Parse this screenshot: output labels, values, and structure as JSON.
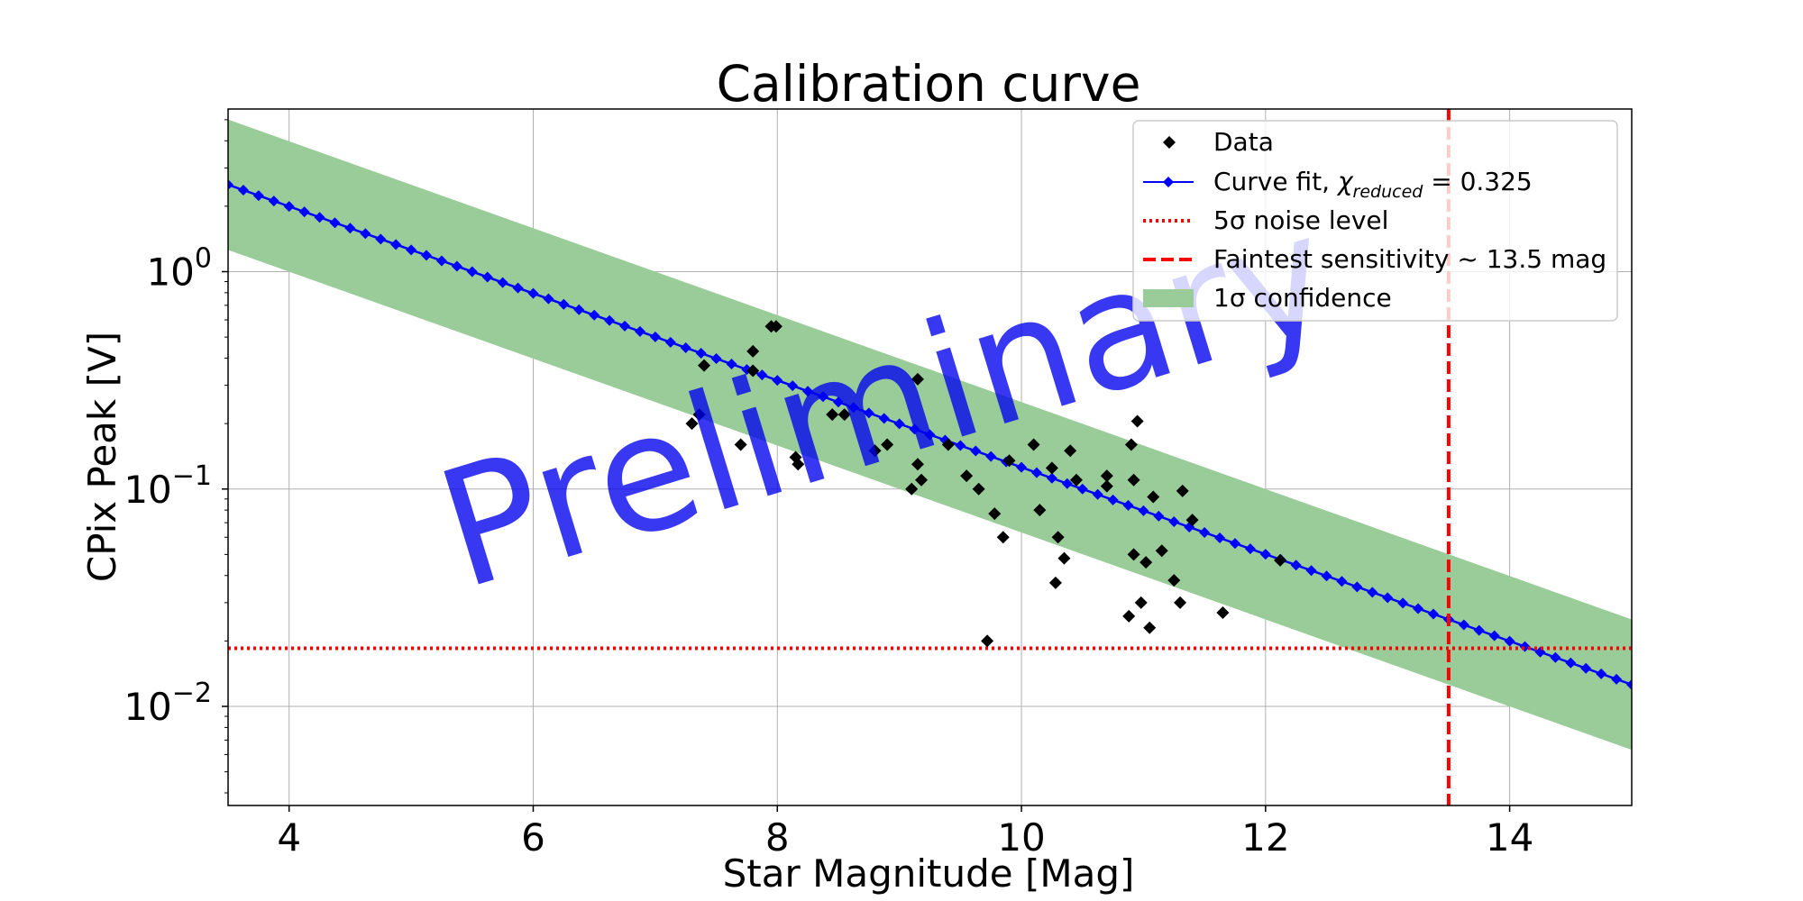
{
  "chart_data": {
    "type": "scatter",
    "title": "Calibration curve",
    "xlabel": "Star Magnitude [Mag]",
    "ylabel": "CPix Peak [V]",
    "yscale": "log",
    "xlim": [
      3.5,
      15.0
    ],
    "ylim": [
      0.0035,
      5.6
    ],
    "grid": true,
    "watermark": "Preliminary",
    "xticks": [
      4,
      6,
      8,
      10,
      12,
      14
    ],
    "xtick_labels": [
      "4",
      "6",
      "8",
      "10",
      "12",
      "14"
    ],
    "yticks": [
      {
        "value": 1,
        "base": "10",
        "exp": "0"
      },
      {
        "value": 0.1,
        "base": "10",
        "exp": "−1"
      },
      {
        "value": 0.01,
        "base": "10",
        "exp": "−2"
      }
    ],
    "legend": {
      "position": "top-right",
      "entries": {
        "data": "Data",
        "fit_prefix": "Curve fit,",
        "fit_chi": "χ",
        "fit_sub": "reduced",
        "fit_value": " = 0.325",
        "noise": "5σ noise level",
        "faint": "Faintest sensitivity ~ 13.5 mag",
        "conf": "1σ confidence"
      }
    },
    "fit": {
      "model": "log10(y) = intercept + slope * x",
      "intercept": 1.1,
      "slope": -0.2,
      "confidence_half_width_decades": 0.3,
      "x_start": 3.5,
      "x_end": 15.0,
      "marker_step": 0.125
    },
    "noise_level": 0.0185,
    "faintest_sensitivity_mag": 13.5,
    "series": [
      {
        "name": "Data",
        "points": [
          [
            7.3,
            0.2
          ],
          [
            7.36,
            0.22
          ],
          [
            7.4,
            0.37
          ],
          [
            7.7,
            0.16
          ],
          [
            7.8,
            0.43
          ],
          [
            7.8,
            0.35
          ],
          [
            7.95,
            0.56
          ],
          [
            7.99,
            0.56
          ],
          [
            8.15,
            0.14
          ],
          [
            8.17,
            0.13
          ],
          [
            8.45,
            0.22
          ],
          [
            8.55,
            0.22
          ],
          [
            8.8,
            0.15
          ],
          [
            8.9,
            0.16
          ],
          [
            9.1,
            0.1
          ],
          [
            9.15,
            0.32
          ],
          [
            9.15,
            0.13
          ],
          [
            9.18,
            0.11
          ],
          [
            9.4,
            0.16
          ],
          [
            9.55,
            0.115
          ],
          [
            9.65,
            0.1
          ],
          [
            9.72,
            0.02
          ],
          [
            9.78,
            0.077
          ],
          [
            9.85,
            0.06
          ],
          [
            9.9,
            0.135
          ],
          [
            10.1,
            0.16
          ],
          [
            10.15,
            0.08
          ],
          [
            10.25,
            0.125
          ],
          [
            10.28,
            0.037
          ],
          [
            10.3,
            0.06
          ],
          [
            10.35,
            0.048
          ],
          [
            10.4,
            0.15
          ],
          [
            10.45,
            0.11
          ],
          [
            10.7,
            0.115
          ],
          [
            10.7,
            0.103
          ],
          [
            10.88,
            0.026
          ],
          [
            10.9,
            0.16
          ],
          [
            10.92,
            0.11
          ],
          [
            10.92,
            0.05
          ],
          [
            10.95,
            0.205
          ],
          [
            10.98,
            0.03
          ],
          [
            11.02,
            0.046
          ],
          [
            11.05,
            0.023
          ],
          [
            11.08,
            0.092
          ],
          [
            11.15,
            0.052
          ],
          [
            11.25,
            0.038
          ],
          [
            11.3,
            0.03
          ],
          [
            11.32,
            0.098
          ],
          [
            11.4,
            0.072
          ],
          [
            11.65,
            0.027
          ],
          [
            12.12,
            0.047
          ]
        ]
      }
    ],
    "colors": {
      "data": "#000000",
      "fit": "#0000ff",
      "confidence": "#99cc99",
      "noise": "#ff0000",
      "faint": "#ff0000",
      "grid": "#b0b0b0",
      "watermark": "#0000ee"
    }
  }
}
